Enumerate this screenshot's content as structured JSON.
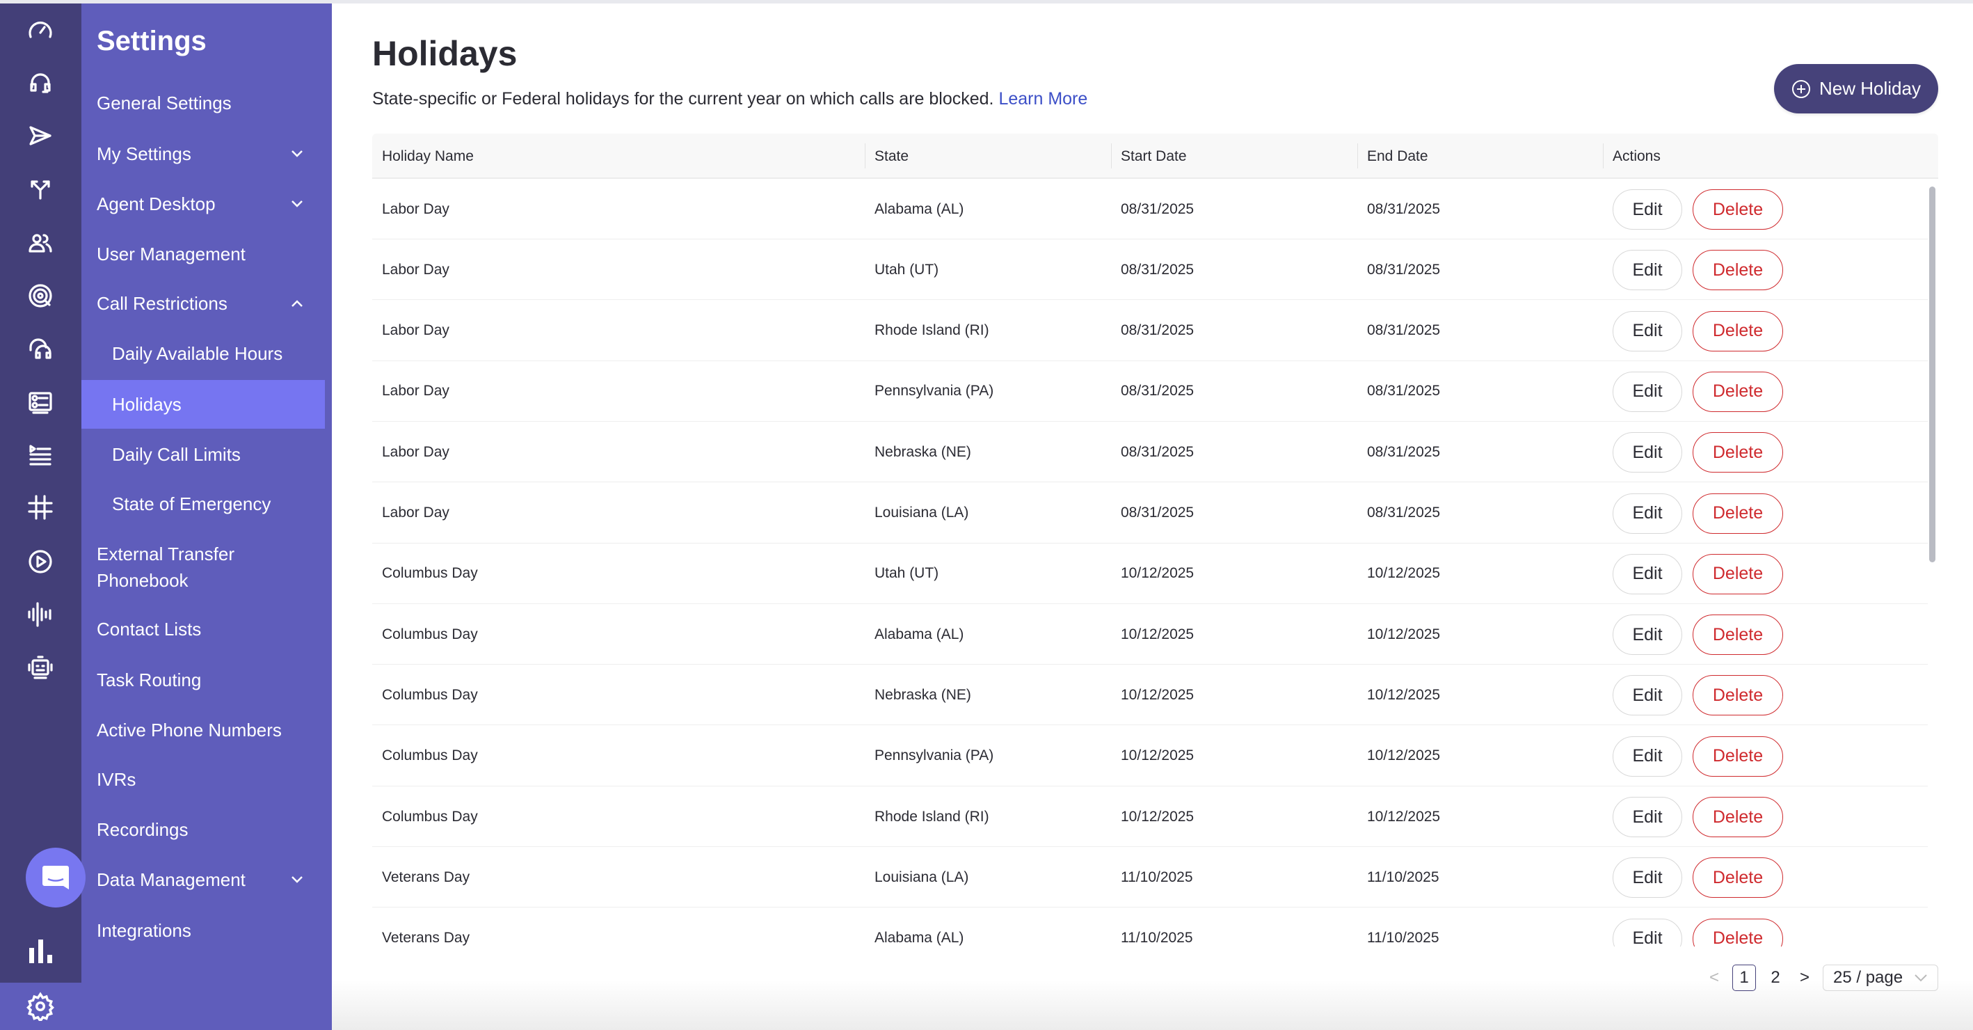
{
  "rail": {
    "icons": [
      "speedometer-icon",
      "headset-icon",
      "send-icon",
      "split-arrows-icon",
      "users-icon",
      "target-icon",
      "agent-headset-icon",
      "form-list-icon",
      "playlist-icon",
      "hashtag-icon",
      "play-circle-icon",
      "waveform-icon",
      "robot-icon"
    ],
    "chat": "chat-icon",
    "analytics": "bar-chart-icon",
    "settings": "gear-icon"
  },
  "sidebar": {
    "title": "Settings",
    "items": [
      {
        "label": "General Settings"
      },
      {
        "label": "My Settings",
        "chevron": "down"
      },
      {
        "label": "Agent Desktop",
        "chevron": "down"
      },
      {
        "label": "User Management"
      },
      {
        "label": "Call Restrictions",
        "chevron": "up"
      },
      {
        "label": "Daily Available Hours",
        "sub": true
      },
      {
        "label": "Holidays",
        "sub": true,
        "active": true
      },
      {
        "label": "Daily Call Limits",
        "sub": true
      },
      {
        "label": "State of Emergency",
        "sub": true
      },
      {
        "label": "External Transfer Phonebook"
      },
      {
        "label": "Contact Lists"
      },
      {
        "label": "Task Routing"
      },
      {
        "label": "Active Phone Numbers"
      },
      {
        "label": "IVRs"
      },
      {
        "label": "Recordings"
      },
      {
        "label": "Data Management",
        "chevron": "down"
      },
      {
        "label": "Integrations"
      }
    ]
  },
  "page": {
    "title": "Holidays",
    "subtitle": "State-specific or Federal holidays for the current year on which calls are blocked.",
    "learn_more": "Learn More",
    "new_button": "New Holiday"
  },
  "table": {
    "columns": [
      "Holiday Name",
      "State",
      "Start Date",
      "End Date",
      "Actions"
    ],
    "edit_label": "Edit",
    "delete_label": "Delete",
    "rows": [
      [
        "Labor Day",
        "Alabama (AL)",
        "08/31/2025",
        "08/31/2025"
      ],
      [
        "Labor Day",
        "Utah (UT)",
        "08/31/2025",
        "08/31/2025"
      ],
      [
        "Labor Day",
        "Rhode Island (RI)",
        "08/31/2025",
        "08/31/2025"
      ],
      [
        "Labor Day",
        "Pennsylvania (PA)",
        "08/31/2025",
        "08/31/2025"
      ],
      [
        "Labor Day",
        "Nebraska (NE)",
        "08/31/2025",
        "08/31/2025"
      ],
      [
        "Labor Day",
        "Louisiana (LA)",
        "08/31/2025",
        "08/31/2025"
      ],
      [
        "Columbus Day",
        "Utah (UT)",
        "10/12/2025",
        "10/12/2025"
      ],
      [
        "Columbus Day",
        "Alabama (AL)",
        "10/12/2025",
        "10/12/2025"
      ],
      [
        "Columbus Day",
        "Nebraska (NE)",
        "10/12/2025",
        "10/12/2025"
      ],
      [
        "Columbus Day",
        "Pennsylvania (PA)",
        "10/12/2025",
        "10/12/2025"
      ],
      [
        "Columbus Day",
        "Rhode Island (RI)",
        "10/12/2025",
        "10/12/2025"
      ],
      [
        "Veterans Day",
        "Louisiana (LA)",
        "11/10/2025",
        "11/10/2025"
      ],
      [
        "Veterans Day",
        "Alabama (AL)",
        "11/10/2025",
        "11/10/2025"
      ]
    ]
  },
  "pagination": {
    "prev": "<",
    "pages": [
      "1",
      "2"
    ],
    "current": "1",
    "next": ">",
    "page_size": "25 / page"
  },
  "colors": {
    "rail": "#433f78",
    "sidebar": "#5f5dbb",
    "active": "#7675f1",
    "primary": "#46427a",
    "danger": "#cf2a2e",
    "link": "#3c4fc7"
  }
}
